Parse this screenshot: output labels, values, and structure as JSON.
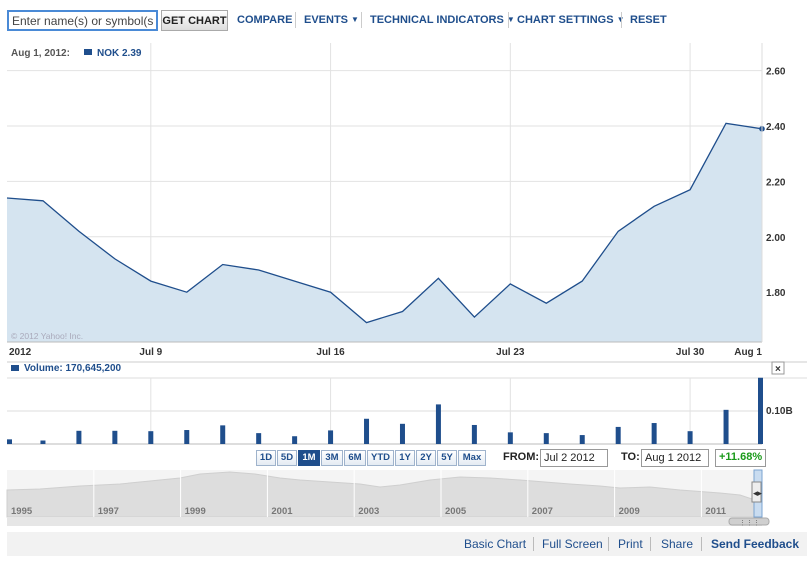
{
  "toolbar": {
    "search_placeholder": "Enter name(s) or symbol(s)",
    "get_chart": "GET CHART",
    "compare": "COMPARE",
    "events": "EVENTS",
    "technical_indicators": "TECHNICAL INDICATORS",
    "chart_settings": "CHART SETTINGS",
    "reset": "RESET"
  },
  "price_panel": {
    "hover_date": "Aug 1, 2012:",
    "series_label": "NOK 2.39",
    "watermark": "© 2012 Yahoo! Inc.",
    "y_ticks": [
      "2.60",
      "2.40",
      "2.20",
      "2.00",
      "1.80"
    ],
    "x_ticks": [
      "2012",
      "Jul 9",
      "Jul 16",
      "Jul 23",
      "Jul 30",
      "Aug 1"
    ]
  },
  "volume_panel": {
    "label": "Volume: 170,645,200",
    "y_tick": "0.10B"
  },
  "ranges": {
    "buttons": [
      "1D",
      "5D",
      "1M",
      "3M",
      "6M",
      "YTD",
      "1Y",
      "2Y",
      "5Y",
      "Max"
    ],
    "active": "1M",
    "from_label": "FROM:",
    "from_value": "Jul 2 2012",
    "to_label": "TO:",
    "to_value": "Aug 1 2012",
    "change": "+11.68%"
  },
  "navigator": {
    "years": [
      "1995",
      "1997",
      "1999",
      "2001",
      "2003",
      "2005",
      "2007",
      "2009",
      "2011"
    ]
  },
  "links": {
    "basic_chart": "Basic Chart",
    "full_screen": "Full Screen",
    "print": "Print",
    "share": "Share",
    "send_feedback": "Send Feedback"
  },
  "colors": {
    "line": "#1f4e8c",
    "area": "#d5e4f0",
    "volume_bar": "#1f4e8c",
    "change_positive": "#1a9a1a"
  },
  "chart_data": {
    "type": "area",
    "series": [
      {
        "name": "NOK",
        "x": [
          "Jul 2",
          "Jul 3",
          "Jul 5",
          "Jul 6",
          "Jul 9",
          "Jul 10",
          "Jul 11",
          "Jul 12",
          "Jul 13",
          "Jul 16",
          "Jul 17",
          "Jul 18",
          "Jul 19",
          "Jul 20",
          "Jul 23",
          "Jul 24",
          "Jul 25",
          "Jul 26",
          "Jul 27",
          "Jul 30",
          "Jul 31",
          "Aug 1"
        ],
        "values": [
          2.14,
          2.13,
          2.02,
          1.92,
          1.84,
          1.8,
          1.9,
          1.88,
          1.84,
          1.8,
          1.69,
          1.73,
          1.85,
          1.71,
          1.83,
          1.76,
          1.84,
          2.02,
          2.11,
          2.17,
          2.41,
          2.39
        ]
      }
    ],
    "ylim": [
      1.62,
      2.7
    ],
    "volume": {
      "name": "Volume",
      "values_millions": [
        12,
        9,
        34,
        34,
        33,
        36,
        48,
        28,
        20,
        35,
        65,
        52,
        102,
        49,
        30,
        28,
        23,
        44,
        54,
        33,
        88,
        170.6452
      ],
      "ylim_millions": [
        0,
        170
      ]
    }
  }
}
